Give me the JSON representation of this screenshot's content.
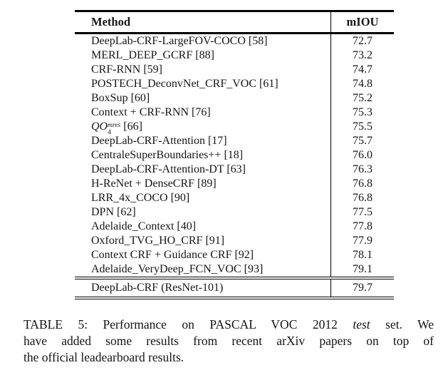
{
  "page": {
    "background": "#ffffff",
    "text_color": "#161616",
    "rule_color": "#000000"
  },
  "table": {
    "header": {
      "method_label": "Method",
      "miou_label": "mIOU"
    },
    "rows": [
      {
        "method": "DeepLab-CRF-LargeFOV-COCO [58]",
        "miou": "72.7"
      },
      {
        "method": "MERL_DEEP_GCRF [88]",
        "miou": "73.2"
      },
      {
        "method": "CRF-RNN [59]",
        "miou": "74.7"
      },
      {
        "method": "POSTECH_DeconvNet_CRF_VOC [61]",
        "miou": "74.8"
      },
      {
        "method": "BoxSup [60]",
        "miou": "75.2"
      },
      {
        "method": "Context + CRF-RNN [76]",
        "miou": "75.3"
      },
      {
        "method_math": {
          "base": "QO",
          "sub": "4",
          "sup": "mres",
          "rest": "[66]"
        },
        "miou": "75.5"
      },
      {
        "method": "DeepLab-CRF-Attention [17]",
        "miou": "75.7"
      },
      {
        "method": "CentraleSuperBoundaries++ [18]",
        "miou": "76.0"
      },
      {
        "method": "DeepLab-CRF-Attention-DT [63]",
        "miou": "76.3"
      },
      {
        "method": "H-ReNet + DenseCRF [89]",
        "miou": "76.8"
      },
      {
        "method": "LRR_4x_COCO [90]",
        "miou": "76.8"
      },
      {
        "method": "DPN [62]",
        "miou": "77.5"
      },
      {
        "method": "Adelaide_Context [40]",
        "miou": "77.8"
      },
      {
        "method": "Oxford_TVG_HO_CRF [91]",
        "miou": "77.9"
      },
      {
        "method": "Context CRF + Guidance CRF [92]",
        "miou": "78.1"
      },
      {
        "method": "Adelaide_VeryDeep_FCN_VOC [93]",
        "miou": "79.1"
      }
    ],
    "final_row": {
      "method": "DeepLab-CRF (ResNet-101)",
      "miou": "79.7"
    }
  },
  "caption": {
    "line1_pre": "TABLE 5: Performance on PASCAL VOC 2012",
    "line1_italic": "test",
    "line1_post": "set. We",
    "line2": "have added some results from recent arXiv papers on top of",
    "line3": "the official leadearboard results."
  },
  "chart_data": {
    "type": "table",
    "title": "TABLE 5: Performance on PASCAL VOC 2012 test set",
    "columns": [
      "Method",
      "mIOU"
    ],
    "categories": [
      "DeepLab-CRF-LargeFOV-COCO [58]",
      "MERL_DEEP_GCRF [88]",
      "CRF-RNN [59]",
      "POSTECH_DeconvNet_CRF_VOC [61]",
      "BoxSup [60]",
      "Context + CRF-RNN [76]",
      "QO_4^mres [66]",
      "DeepLab-CRF-Attention [17]",
      "CentraleSuperBoundaries++ [18]",
      "DeepLab-CRF-Attention-DT [63]",
      "H-ReNet + DenseCRF [89]",
      "LRR_4x_COCO [90]",
      "DPN [62]",
      "Adelaide_Context [40]",
      "Oxford_TVG_HO_CRF [91]",
      "Context CRF + Guidance CRF [92]",
      "Adelaide_VeryDeep_FCN_VOC [93]",
      "DeepLab-CRF (ResNet-101)"
    ],
    "values": [
      72.7,
      73.2,
      74.7,
      74.8,
      75.2,
      75.3,
      75.5,
      75.7,
      76.0,
      76.3,
      76.8,
      76.8,
      77.5,
      77.8,
      77.9,
      78.1,
      79.1,
      79.7
    ]
  }
}
